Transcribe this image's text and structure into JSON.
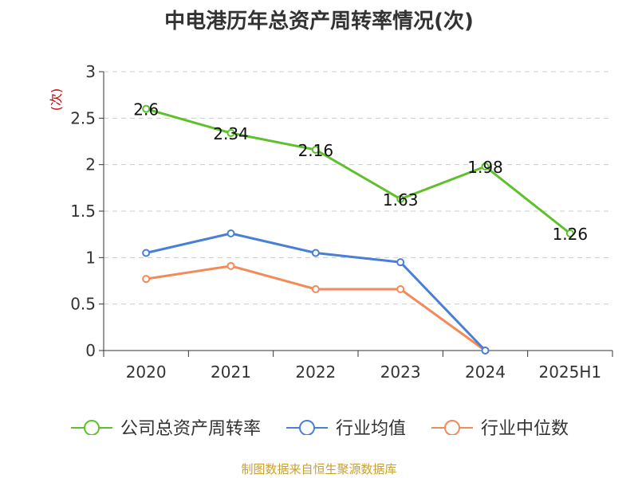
{
  "title": "中电港历年总资产周转率情况(次)",
  "unit_label": "(次)",
  "source_note": "制图数据来自恒生聚源数据库",
  "chart_data": {
    "type": "line",
    "title": "中电港历年总资产周转率情况(次)",
    "ylabel": "(次)",
    "xlabel": "",
    "categories": [
      "2020",
      "2021",
      "2022",
      "2023",
      "2024",
      "2025H1"
    ],
    "ylim": [
      0,
      3
    ],
    "yticks": [
      "0",
      "0.5",
      "1",
      "1.5",
      "2",
      "2.5",
      "3"
    ],
    "grid": true,
    "legend_position": "bottom",
    "series": [
      {
        "name": "公司总资产周转率",
        "color": "#5ec12b",
        "values": [
          2.6,
          2.34,
          2.16,
          1.63,
          1.98,
          1.26
        ],
        "labels": [
          "2.6",
          "2.34",
          "2.16",
          "1.63",
          "1.98",
          "1.26"
        ]
      },
      {
        "name": "行业均值",
        "color": "#4a7fd6",
        "values": [
          1.05,
          1.26,
          1.05,
          0.95,
          0,
          null
        ]
      },
      {
        "name": "行业中位数",
        "color": "#f28a5a",
        "values": [
          0.77,
          0.91,
          0.66,
          0.66,
          0,
          null
        ]
      }
    ]
  }
}
